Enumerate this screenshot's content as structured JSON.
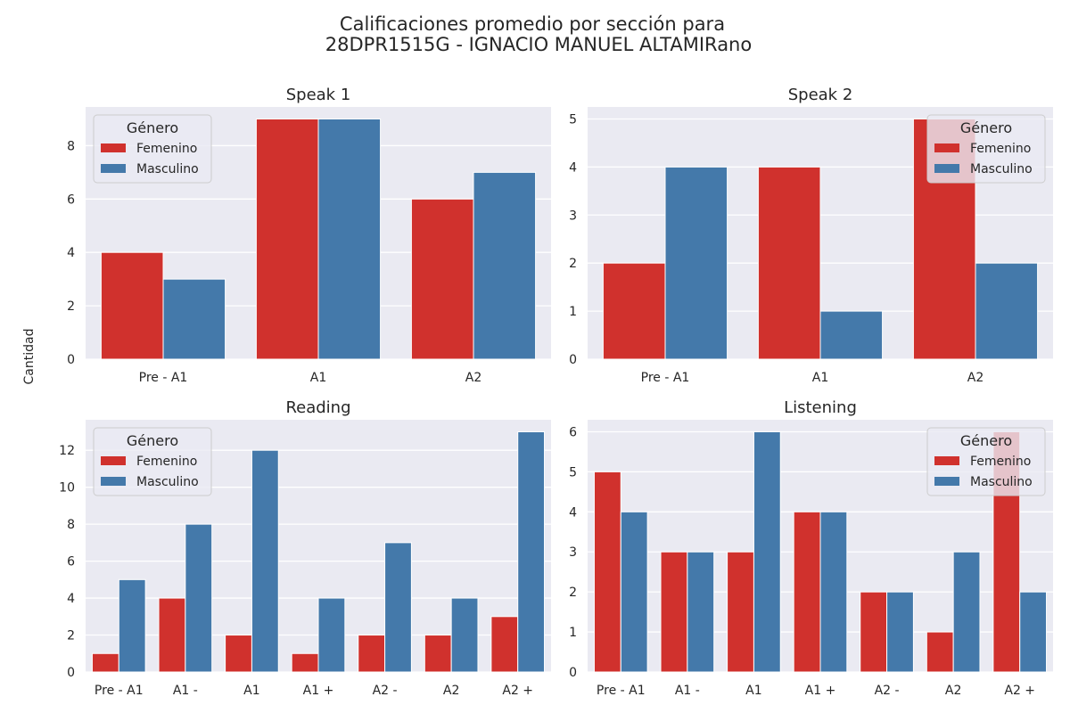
{
  "figure": {
    "title_line1": "Calificaciones promedio por sección para",
    "title_line2": "28DPR1515G - IGNACIO MANUEL ALTAMIRano",
    "ylabel": "Cantidad"
  },
  "colors": {
    "femenino": "#d0312d",
    "masculino": "#4479aa",
    "panel_bg": "#eaeaf2",
    "grid": "#ffffff"
  },
  "chart_data": [
    {
      "type": "bar",
      "title": "Speak 1",
      "categories": [
        "Pre - A1",
        "A1",
        "A2"
      ],
      "series": [
        {
          "name": "Femenino",
          "values": [
            4,
            9,
            6
          ]
        },
        {
          "name": "Masculino",
          "values": [
            3,
            9,
            7
          ]
        }
      ],
      "ylim": [
        0,
        9.45
      ],
      "yticks": [
        0,
        2,
        4,
        6,
        8
      ],
      "legend": {
        "title": "Género",
        "placement": "top-left"
      },
      "grid": true
    },
    {
      "type": "bar",
      "title": "Speak 2",
      "categories": [
        "Pre - A1",
        "A1",
        "A2"
      ],
      "series": [
        {
          "name": "Femenino",
          "values": [
            2,
            4,
            5
          ]
        },
        {
          "name": "Masculino",
          "values": [
            4,
            1,
            2
          ]
        }
      ],
      "ylim": [
        0,
        5.25
      ],
      "yticks": [
        0,
        1,
        2,
        3,
        4,
        5
      ],
      "legend": {
        "title": "Género",
        "placement": "top-right"
      },
      "grid": true
    },
    {
      "type": "bar",
      "title": "Reading",
      "categories": [
        "Pre - A1",
        "A1 -",
        "A1",
        "A1 +",
        "A2 -",
        "A2",
        "A2 +"
      ],
      "series": [
        {
          "name": "Femenino",
          "values": [
            1,
            4,
            2,
            1,
            2,
            2,
            3
          ]
        },
        {
          "name": "Masculino",
          "values": [
            5,
            8,
            12,
            4,
            7,
            4,
            13
          ]
        }
      ],
      "ylim": [
        0,
        13.65
      ],
      "yticks": [
        0,
        2,
        4,
        6,
        8,
        10,
        12
      ],
      "legend": {
        "title": "Género",
        "placement": "top-left"
      },
      "grid": true
    },
    {
      "type": "bar",
      "title": "Listening",
      "categories": [
        "Pre - A1",
        "A1 -",
        "A1",
        "A1 +",
        "A2 -",
        "A2",
        "A2 +"
      ],
      "series": [
        {
          "name": "Femenino",
          "values": [
            5,
            3,
            3,
            4,
            2,
            1,
            6
          ]
        },
        {
          "name": "Masculino",
          "values": [
            4,
            3,
            6,
            4,
            2,
            3,
            2
          ]
        }
      ],
      "ylim": [
        0,
        6.3
      ],
      "yticks": [
        0,
        1,
        2,
        3,
        4,
        5,
        6
      ],
      "legend": {
        "title": "Género",
        "placement": "top-right"
      },
      "grid": true
    }
  ]
}
